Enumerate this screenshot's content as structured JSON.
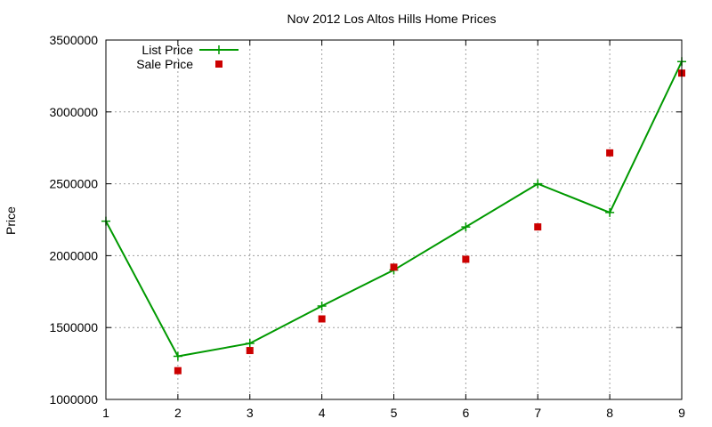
{
  "chart_data": {
    "type": "line",
    "title": "Nov 2012 Los Altos Hills Home Prices",
    "xlabel": "",
    "ylabel": "Price",
    "xlim": [
      1,
      9
    ],
    "ylim": [
      1000000,
      3500000
    ],
    "x_ticks": [
      1,
      2,
      3,
      4,
      5,
      6,
      7,
      8,
      9
    ],
    "y_ticks": [
      1000000,
      1500000,
      2000000,
      2500000,
      3000000,
      3500000
    ],
    "grid": true,
    "legend_position": "top-left",
    "series": [
      {
        "name": "List Price",
        "style": "line-with-plus-markers",
        "color": "#009900",
        "x": [
          1,
          2,
          3,
          4,
          5,
          6,
          7,
          8,
          9
        ],
        "values": [
          2240000,
          1300000,
          1390000,
          1650000,
          1900000,
          2200000,
          2500000,
          2300000,
          3350000
        ]
      },
      {
        "name": "Sale Price",
        "style": "square-markers",
        "color": "#cc0000",
        "x": [
          2,
          3,
          4,
          5,
          6,
          7,
          8,
          9
        ],
        "values": [
          1200000,
          1340000,
          1560000,
          1920000,
          1975000,
          2200000,
          2715000,
          3270000
        ]
      }
    ]
  }
}
